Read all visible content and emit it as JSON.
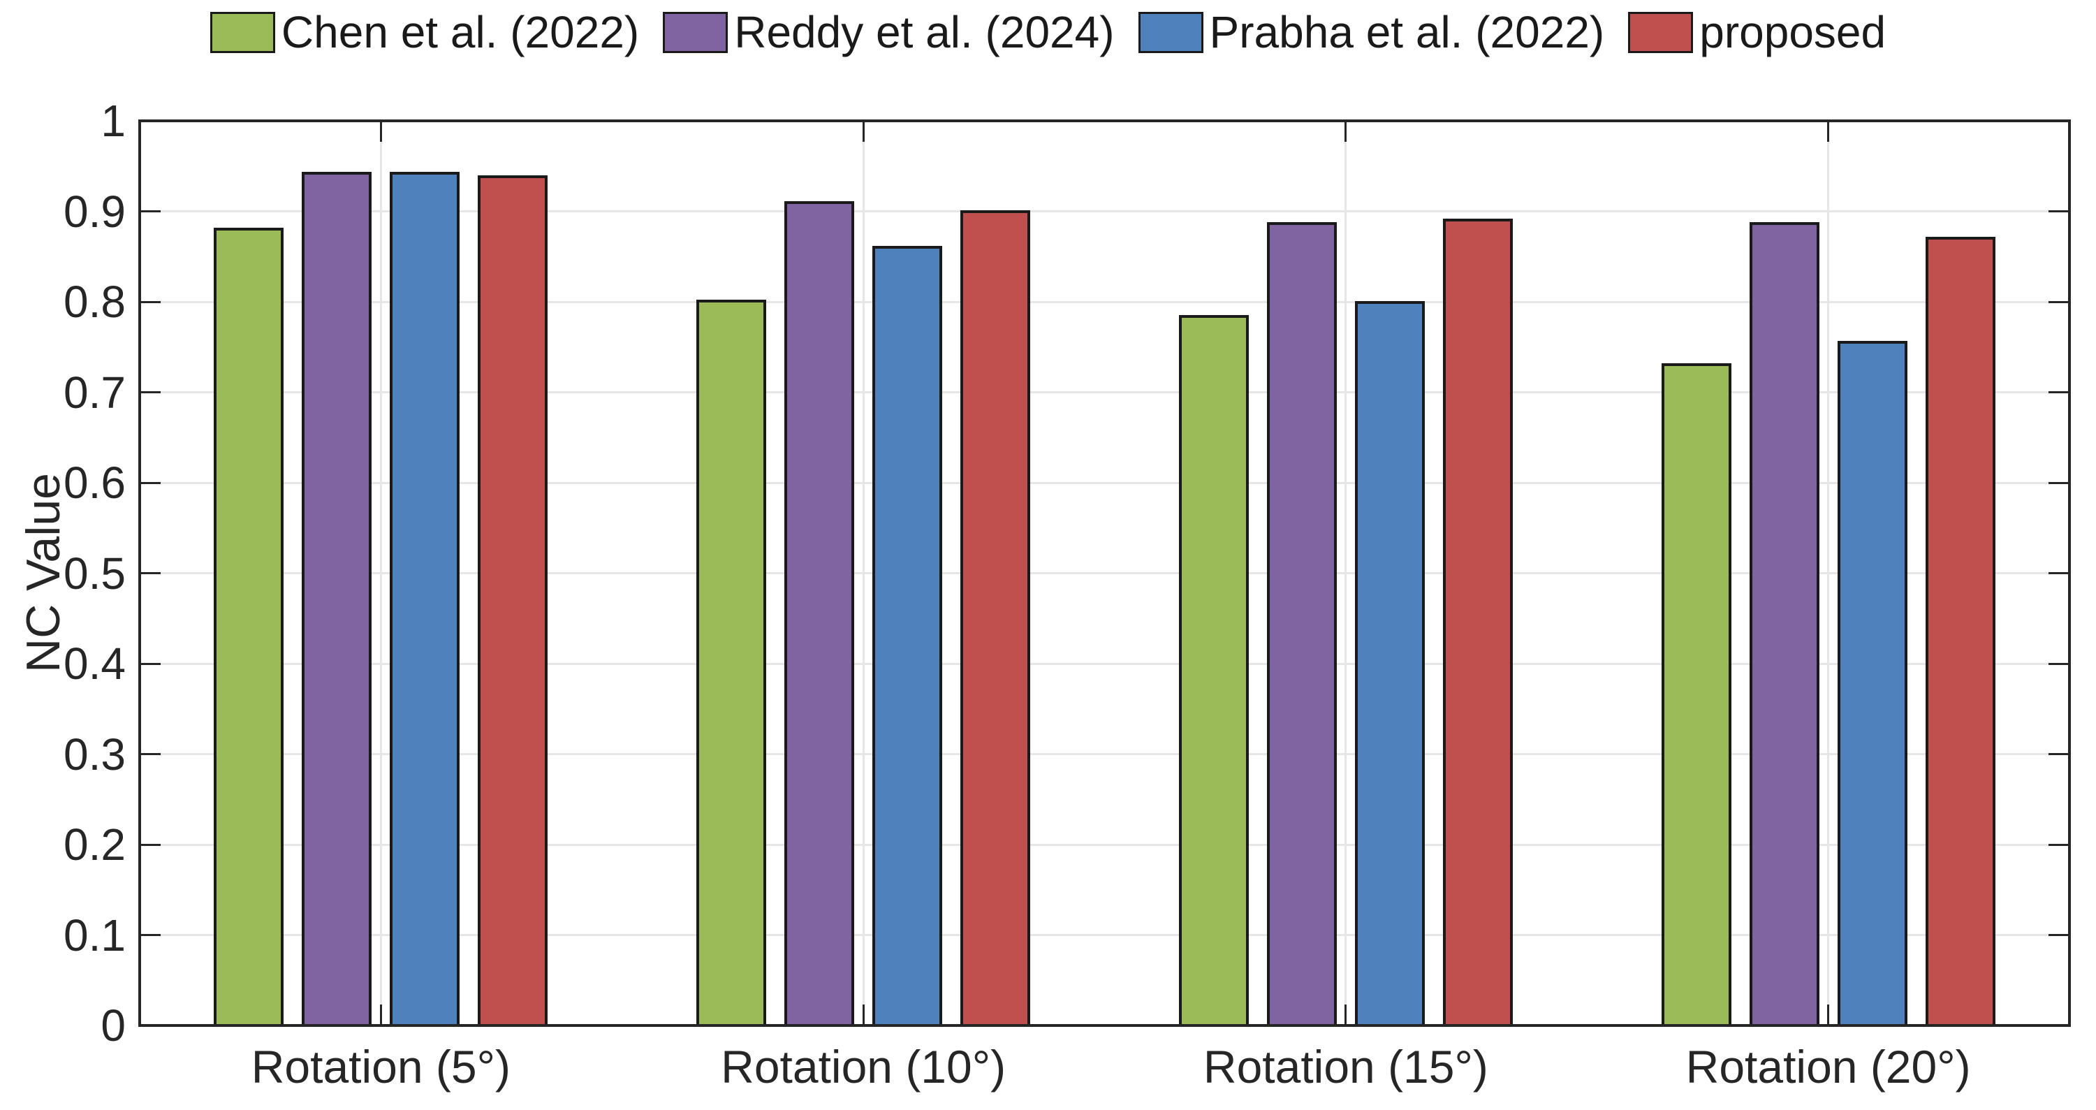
{
  "chart_data": {
    "type": "bar",
    "title": "",
    "categories": [
      "Rotation (5°)",
      "Rotation (10°)",
      "Rotation (15°)",
      "Rotation (20°)"
    ],
    "series": [
      {
        "name": "Chen et al. (2022)",
        "color": "#9BBB59",
        "values": [
          0.882,
          0.802,
          0.785,
          0.732
        ]
      },
      {
        "name": "Reddy et al. (2024)",
        "color": "#8064A2",
        "values": [
          0.944,
          0.911,
          0.888,
          0.888
        ]
      },
      {
        "name": "Prabha et al. (2022)",
        "color": "#4F81BD",
        "values": [
          0.944,
          0.862,
          0.801,
          0.757
        ]
      },
      {
        "name": "proposed",
        "color": "#C0504D",
        "values": [
          0.94,
          0.901,
          0.892,
          0.872
        ]
      }
    ],
    "xlabel": "",
    "ylabel": "NC Value",
    "ylim": [
      0,
      1
    ],
    "ytick_step": 0.1,
    "ytick_labels": [
      "0",
      "0.1",
      "0.2",
      "0.3",
      "0.4",
      "0.5",
      "0.6",
      "0.7",
      "0.8",
      "0.9",
      "1"
    ],
    "grid": "on",
    "legend_position": "top-center",
    "colors": {
      "axis": "#262626",
      "grid": "#e6e6e6",
      "bar_edge": "#1a1a1a",
      "background": "#ffffff"
    }
  }
}
